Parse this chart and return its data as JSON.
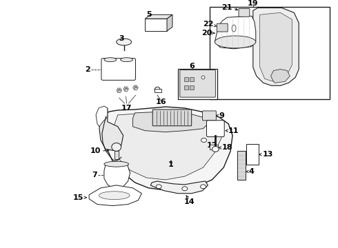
{
  "background_color": "#ffffff",
  "line_color": "#1a1a1a",
  "text_color": "#000000",
  "fig_width": 4.9,
  "fig_height": 3.6,
  "dpi": 100,
  "font_size": 6.5,
  "font_size_large": 8
}
